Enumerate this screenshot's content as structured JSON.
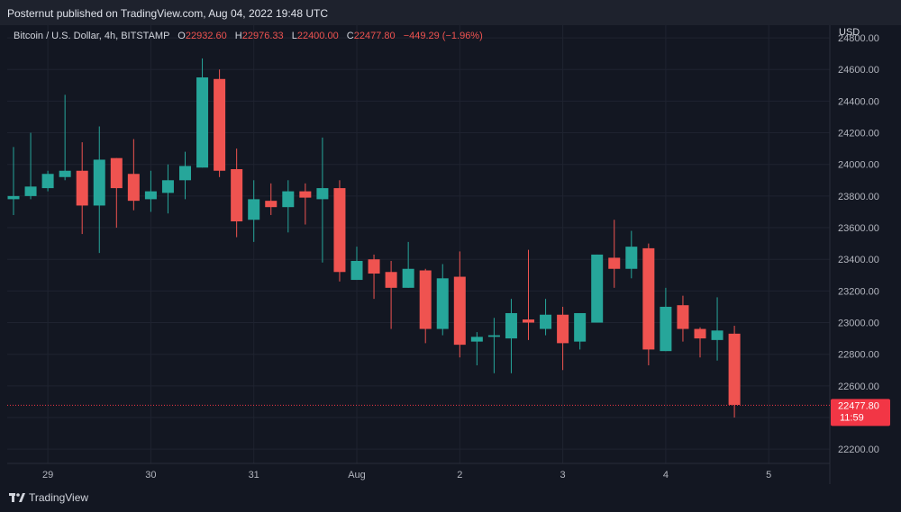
{
  "header": {
    "published_text": "Posternut published on TradingView.com, Aug 04, 2022 19:48 UTC"
  },
  "legend": {
    "symbol": "Bitcoin / U.S. Dollar, 4h, BITSTAMP",
    "open_label": "O",
    "open_value": "22932.60",
    "high_label": "H",
    "high_value": "22976.33",
    "low_label": "L",
    "low_value": "22400.00",
    "close_label": "C",
    "close_value": "22477.80",
    "change": "−449.29 (−1.96%)"
  },
  "currency": "USD",
  "last_price": {
    "value": "22477.80",
    "countdown": "11:59",
    "color": "#f23645"
  },
  "brand": {
    "name": "TradingView"
  },
  "colors": {
    "up": "#26a69a",
    "down": "#ef5350",
    "background": "#131722",
    "grid": "#1f2330"
  },
  "chart_data": {
    "type": "candlestick",
    "y_ticks": [
      "22200.00",
      "22400.00",
      "22600.00",
      "22800.00",
      "23000.00",
      "23200.00",
      "23400.00",
      "23600.00",
      "23800.00",
      "24000.00",
      "24200.00",
      "24400.00",
      "24600.00",
      "24800.00"
    ],
    "ylim": [
      22110,
      24880
    ],
    "x_ticks": [
      {
        "label": "29",
        "index": 2
      },
      {
        "label": "30",
        "index": 8
      },
      {
        "label": "31",
        "index": 14
      },
      {
        "label": "Aug",
        "index": 20
      },
      {
        "label": "2",
        "index": 26
      },
      {
        "label": "3",
        "index": 32
      },
      {
        "label": "4",
        "index": 38
      },
      {
        "label": "5",
        "index": 44
      }
    ],
    "candles": [
      {
        "o": 23780,
        "h": 24110,
        "l": 23680,
        "c": 23800
      },
      {
        "o": 23800,
        "h": 24200,
        "l": 23780,
        "c": 23860
      },
      {
        "o": 23850,
        "h": 23960,
        "l": 23830,
        "c": 23940
      },
      {
        "o": 23920,
        "h": 24440,
        "l": 23900,
        "c": 23960
      },
      {
        "o": 23960,
        "h": 24140,
        "l": 23560,
        "c": 23740
      },
      {
        "o": 23740,
        "h": 24240,
        "l": 23440,
        "c": 24030
      },
      {
        "o": 24040,
        "h": 24040,
        "l": 23600,
        "c": 23850
      },
      {
        "o": 23940,
        "h": 24160,
        "l": 23710,
        "c": 23770
      },
      {
        "o": 23780,
        "h": 23960,
        "l": 23700,
        "c": 23830
      },
      {
        "o": 23820,
        "h": 24000,
        "l": 23690,
        "c": 23900
      },
      {
        "o": 23900,
        "h": 24080,
        "l": 23780,
        "c": 23990
      },
      {
        "o": 23980,
        "h": 24670,
        "l": 23980,
        "c": 24550
      },
      {
        "o": 24540,
        "h": 24600,
        "l": 23920,
        "c": 23960
      },
      {
        "o": 23970,
        "h": 24100,
        "l": 23540,
        "c": 23640
      },
      {
        "o": 23650,
        "h": 23900,
        "l": 23510,
        "c": 23780
      },
      {
        "o": 23770,
        "h": 23880,
        "l": 23680,
        "c": 23730
      },
      {
        "o": 23730,
        "h": 23900,
        "l": 23570,
        "c": 23830
      },
      {
        "o": 23830,
        "h": 23880,
        "l": 23620,
        "c": 23790
      },
      {
        "o": 23780,
        "h": 24170,
        "l": 23380,
        "c": 23850
      },
      {
        "o": 23850,
        "h": 23900,
        "l": 23260,
        "c": 23320
      },
      {
        "o": 23270,
        "h": 23480,
        "l": 23270,
        "c": 23390
      },
      {
        "o": 23400,
        "h": 23430,
        "l": 23150,
        "c": 23310
      },
      {
        "o": 23320,
        "h": 23390,
        "l": 22960,
        "c": 23220
      },
      {
        "o": 23220,
        "h": 23510,
        "l": 23220,
        "c": 23340
      },
      {
        "o": 23330,
        "h": 23340,
        "l": 22870,
        "c": 22960
      },
      {
        "o": 22960,
        "h": 23370,
        "l": 22920,
        "c": 23280
      },
      {
        "o": 23290,
        "h": 23450,
        "l": 22780,
        "c": 22860
      },
      {
        "o": 22880,
        "h": 22940,
        "l": 22730,
        "c": 22910
      },
      {
        "o": 22910,
        "h": 23030,
        "l": 22680,
        "c": 22920
      },
      {
        "o": 22900,
        "h": 23150,
        "l": 22680,
        "c": 23060
      },
      {
        "o": 23020,
        "h": 23460,
        "l": 22890,
        "c": 23000
      },
      {
        "o": 22960,
        "h": 23150,
        "l": 22920,
        "c": 23050
      },
      {
        "o": 23050,
        "h": 23100,
        "l": 22700,
        "c": 22870
      },
      {
        "o": 22880,
        "h": 23060,
        "l": 22830,
        "c": 23060
      },
      {
        "o": 23000,
        "h": 23430,
        "l": 23000,
        "c": 23430
      },
      {
        "o": 23410,
        "h": 23650,
        "l": 23220,
        "c": 23340
      },
      {
        "o": 23340,
        "h": 23580,
        "l": 23280,
        "c": 23480
      },
      {
        "o": 23470,
        "h": 23500,
        "l": 22730,
        "c": 22830
      },
      {
        "o": 22820,
        "h": 23220,
        "l": 22820,
        "c": 23100
      },
      {
        "o": 23110,
        "h": 23170,
        "l": 22880,
        "c": 22960
      },
      {
        "o": 22960,
        "h": 22970,
        "l": 22780,
        "c": 22900
      },
      {
        "o": 22890,
        "h": 23160,
        "l": 22760,
        "c": 22950
      },
      {
        "o": 22930,
        "h": 22980,
        "l": 22400,
        "c": 22480
      }
    ],
    "last_price": 22477.8
  }
}
